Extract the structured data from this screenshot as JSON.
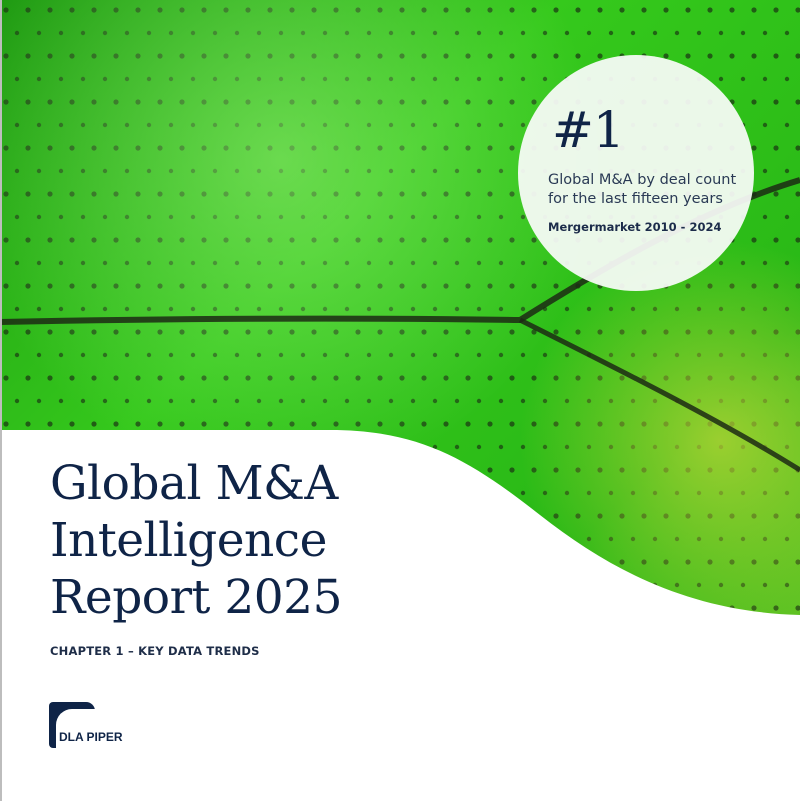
{
  "cover": {
    "title_lines": [
      "Global M&A",
      "Intelligence",
      "Report 2025"
    ],
    "chapter": "CHAPTER 1 – KEY DATA TRENDS"
  },
  "badge": {
    "rank": "#1",
    "description": "Global M&A by deal count for the last fifteen years",
    "source": "Mergermarket 2010 - 2024"
  },
  "logo": {
    "text": "DLA PIPER"
  },
  "colors": {
    "navy": "#0f2447",
    "green": "#2fc41a"
  }
}
